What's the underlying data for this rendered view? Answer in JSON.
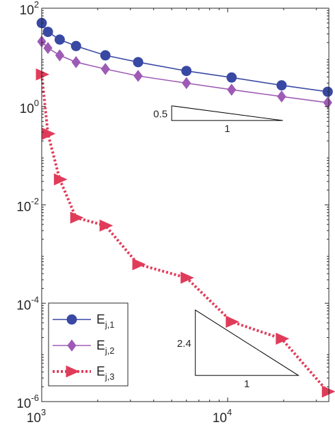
{
  "chart_data": {
    "type": "line",
    "x_scale": "log",
    "y_scale": "log",
    "xlim": [
      1000,
      35000
    ],
    "ylim": [
      1e-06,
      100
    ],
    "x_ticks": [
      {
        "value": 1000,
        "base": "10",
        "exp": "3"
      },
      {
        "value": 10000,
        "base": "10",
        "exp": "4"
      }
    ],
    "y_ticks": [
      {
        "value": 100,
        "base": "10",
        "exp": "2"
      },
      {
        "value": 1,
        "base": "10",
        "exp": "0"
      },
      {
        "value": 0.01,
        "base": "10",
        "exp": "-2"
      },
      {
        "value": 0.0001,
        "base": "10",
        "exp": "-4"
      },
      {
        "value": 1e-06,
        "base": "10",
        "exp": "-6"
      }
    ],
    "grid": false,
    "legend_position": "bottom-left",
    "series": [
      {
        "name_base": "E",
        "name_sub": "j,1",
        "color": "#3949a3",
        "line_style": "solid",
        "marker": "circle",
        "x": [
          1000,
          1080,
          1250,
          1530,
          2200,
          3300,
          6000,
          10500,
          19500,
          34500
        ],
        "y": [
          50,
          33,
          23,
          17,
          11,
          8,
          5.3,
          3.9,
          2.7,
          2.0
        ]
      },
      {
        "name_base": "E",
        "name_sub": "j,2",
        "color": "#9e5bb5",
        "line_style": "solid",
        "marker": "diamond",
        "x": [
          1000,
          1080,
          1250,
          1530,
          2200,
          3300,
          6000,
          10500,
          19500,
          34500
        ],
        "y": [
          21,
          15.5,
          11,
          8,
          5.8,
          4.2,
          3.0,
          2.2,
          1.6,
          1.2
        ]
      },
      {
        "name_base": "E",
        "name_sub": "j,3",
        "color": "#e03c5a",
        "line_style": "dotted",
        "marker": "triangle-right",
        "x": [
          1000,
          1080,
          1250,
          1530,
          2200,
          3300,
          6000,
          10500,
          19500,
          34500
        ],
        "y": [
          4.5,
          0.28,
          0.033,
          0.0055,
          0.0038,
          0.00062,
          0.00033,
          4.2e-05,
          1.9e-05,
          1.6e-06
        ]
      }
    ],
    "slope_triangles": [
      {
        "name": "slope-triangle-upper",
        "x0": 5000,
        "x1": 19800,
        "y_bottom": 0.52,
        "slope": 0.5,
        "rise_label": "0.5",
        "run_label": "1"
      },
      {
        "name": "slope-triangle-lower",
        "x0": 6700,
        "x1": 24000,
        "y_bottom": 3.4e-06,
        "slope": 2.4,
        "rise_label": "2.4",
        "run_label": "1"
      }
    ]
  }
}
